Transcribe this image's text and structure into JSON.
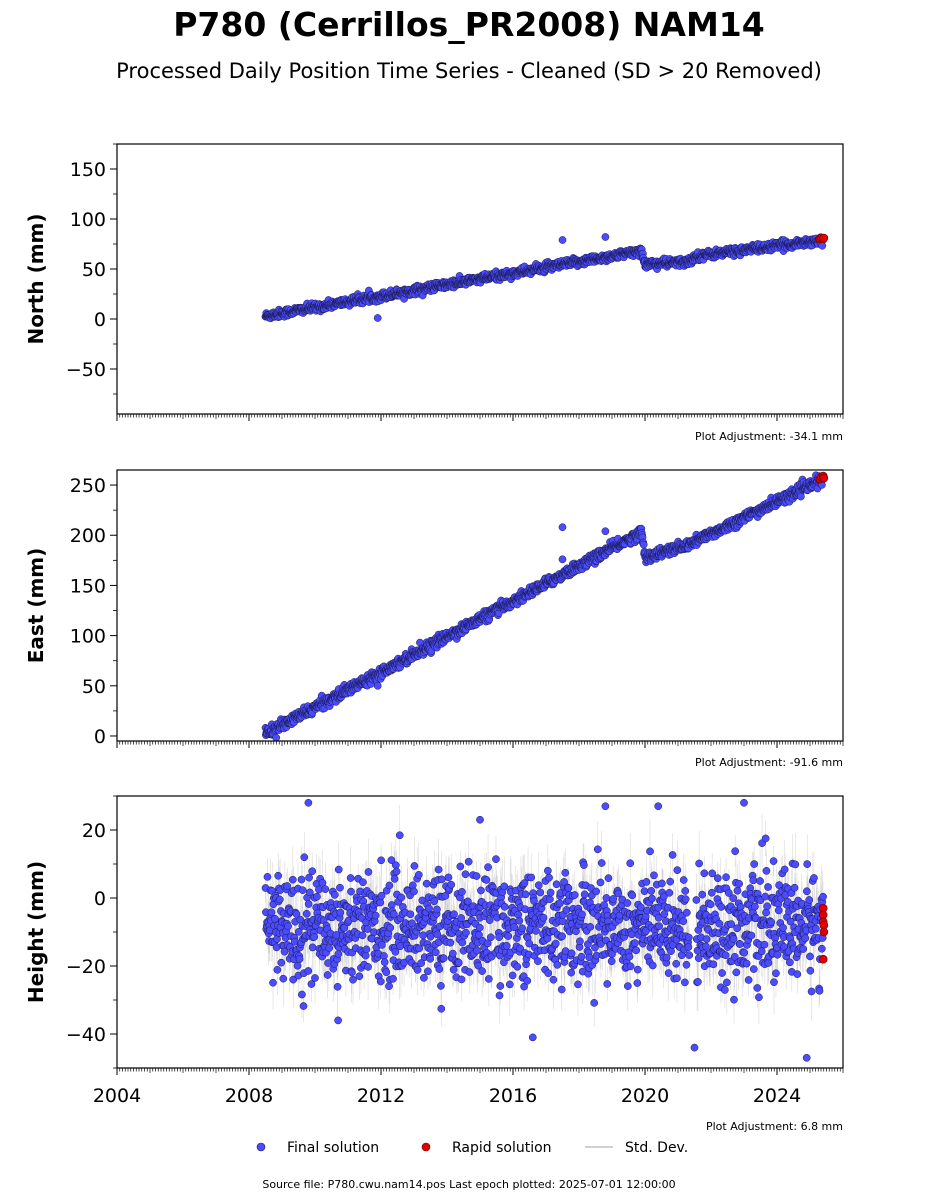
{
  "title": "P780 (Cerrillos_PR2008) NAM14",
  "subtitle": "Processed Daily Position Time Series - Cleaned (SD > 20 Removed)",
  "colors": {
    "final": "#4b4bff",
    "final_edge": "#1a1a4d",
    "rapid": "#e00000",
    "rapid_edge": "#600000",
    "stddev": "#b4b4b4"
  },
  "legend": {
    "final": "Final solution",
    "rapid": "Rapid solution",
    "stddev": "Std. Dev."
  },
  "source_note": "Source file: P780.cwu.nam14.pos  Last epoch plotted: 2025-07-01 12:00:00",
  "chart_data": [
    {
      "type": "scatter",
      "name": "north",
      "ylabel": "North (mm)",
      "adjustment": "Plot Adjustment: -34.1 mm",
      "xlim": [
        2004.0,
        2026.0
      ],
      "ylim": [
        -95,
        175
      ],
      "yticks": [
        -50,
        0,
        50,
        100,
        150
      ],
      "ytick_labels": [
        "−50",
        "0",
        "50",
        "100",
        "150"
      ],
      "ygrid_minor_step": 25,
      "show_xlabels": false,
      "trend": [
        [
          2008.5,
          3
        ],
        [
          2019.9,
          68
        ],
        [
          2020.0,
          55
        ],
        [
          2021.3,
          57
        ],
        [
          2021.6,
          63
        ],
        [
          2025.4,
          79
        ]
      ],
      "noise": 2.0,
      "outliers": [
        [
          2011.9,
          1
        ],
        [
          2017.5,
          79
        ],
        [
          2018.8,
          82
        ]
      ],
      "rapid": [
        [
          2025.3,
          80
        ],
        [
          2025.35,
          81
        ],
        [
          2025.4,
          80
        ],
        [
          2025.42,
          81
        ]
      ]
    },
    {
      "type": "scatter",
      "name": "east",
      "ylabel": "East (mm)",
      "adjustment": "Plot Adjustment: -91.6 mm",
      "xlim": [
        2004.0,
        2026.0
      ],
      "ylim": [
        -5,
        265
      ],
      "yticks": [
        0,
        50,
        100,
        150,
        200,
        250
      ],
      "ytick_labels": [
        "0",
        "50",
        "100",
        "150",
        "200",
        "250"
      ],
      "ygrid_minor_step": 25,
      "show_xlabels": false,
      "trend": [
        [
          2008.5,
          2
        ],
        [
          2019.9,
          203
        ],
        [
          2020.0,
          178
        ],
        [
          2021.3,
          190
        ],
        [
          2021.6,
          195
        ],
        [
          2025.4,
          256
        ]
      ],
      "noise": 2.5,
      "outliers": [
        [
          2011.9,
          50
        ],
        [
          2017.5,
          208
        ],
        [
          2017.5,
          176
        ],
        [
          2018.8,
          204
        ]
      ],
      "rapid": [
        [
          2025.3,
          256
        ],
        [
          2025.35,
          258
        ],
        [
          2025.4,
          259
        ],
        [
          2025.42,
          257
        ]
      ]
    },
    {
      "type": "scatter",
      "name": "height",
      "ylabel": "Height (mm)",
      "adjustment": "Plot Adjustment: 6.8 mm",
      "xlim": [
        2004.0,
        2026.0
      ],
      "ylim": [
        -50,
        30
      ],
      "yticks": [
        -40,
        -20,
        0,
        20
      ],
      "ytick_labels": [
        "−40",
        "−20",
        "0",
        "20"
      ],
      "ygrid_minor_step": 10,
      "show_xlabels": true,
      "xticks": [
        2004,
        2008,
        2012,
        2016,
        2020,
        2024
      ],
      "xtick_labels": [
        "2004",
        "2008",
        "2012",
        "2016",
        "2020",
        "2024"
      ],
      "trend": [
        [
          2008.5,
          -8
        ],
        [
          2025.4,
          -8
        ]
      ],
      "noise": 8.0,
      "gap": [
        2021.35,
        2021.55
      ],
      "outliers": [
        [
          2009.8,
          28
        ],
        [
          2015.0,
          23
        ],
        [
          2018.8,
          27
        ],
        [
          2020.4,
          27
        ],
        [
          2023.0,
          28
        ],
        [
          2016.6,
          -41
        ],
        [
          2021.5,
          -44
        ],
        [
          2024.9,
          -47
        ],
        [
          2010.7,
          -36
        ]
      ],
      "rapid": [
        [
          2025.4,
          -3
        ],
        [
          2025.4,
          -5
        ],
        [
          2025.4,
          -7
        ],
        [
          2025.42,
          -8
        ],
        [
          2025.42,
          -10
        ],
        [
          2025.4,
          -18
        ]
      ]
    }
  ]
}
